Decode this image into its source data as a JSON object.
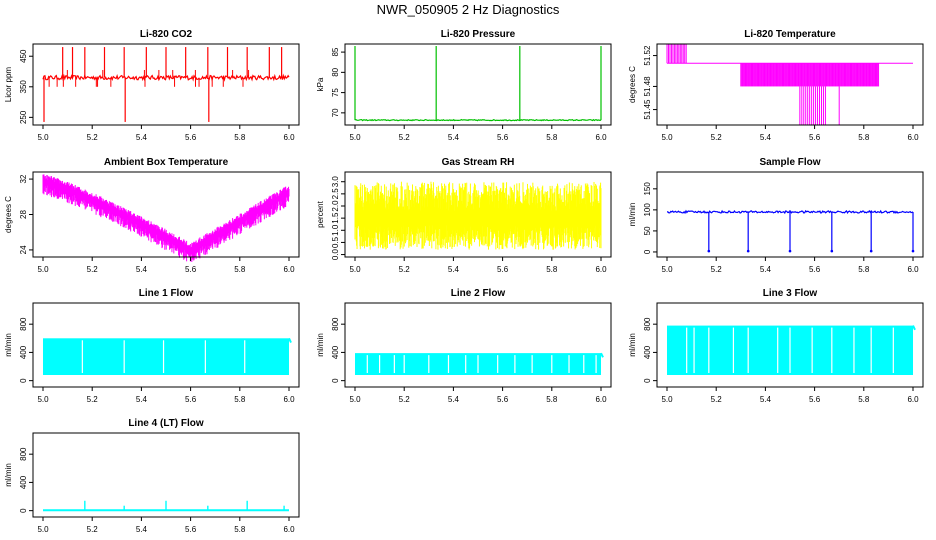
{
  "page_title": "NWR_050905  2 Hz Diagnostics",
  "chart_data": [
    {
      "type": "line",
      "title": "Li-820 CO2",
      "ylabel": "Licor ppm",
      "x_ticks": [
        "5.0",
        "5.2",
        "5.4",
        "5.6",
        "5.8",
        "6.0"
      ],
      "y_ticks": [
        "250",
        "350",
        "450"
      ],
      "xlim": [
        5.0,
        6.0
      ],
      "ylim": [
        225,
        490
      ],
      "color": "#ff0000",
      "series": [
        {
          "name": "CO2",
          "baseline": 380,
          "spikes_up": [
            5.08,
            5.12,
            5.17,
            5.25,
            5.33,
            5.42,
            5.5,
            5.58,
            5.67,
            5.75,
            5.83,
            5.92,
            5.97
          ],
          "spike_top": 480,
          "spikes_down": [
            5.0,
            5.33,
            5.67
          ],
          "spike_bottom": 235
        }
      ]
    },
    {
      "type": "line",
      "title": "Li-820 Pressure",
      "ylabel": "kPa",
      "x_ticks": [
        "5.0",
        "5.2",
        "5.4",
        "5.6",
        "5.8",
        "6.0"
      ],
      "y_ticks": [
        "70",
        "75",
        "80",
        "85"
      ],
      "xlim": [
        5.0,
        6.0
      ],
      "ylim": [
        67,
        87
      ],
      "color": "#00c000",
      "series": [
        {
          "name": "Pressure",
          "baseline": 68.2,
          "spikes_up": [
            5.0,
            5.33,
            5.67,
            6.0
          ],
          "spike_top": 86.5
        }
      ]
    },
    {
      "type": "line",
      "title": "Li-820 Temperature",
      "ylabel": "degrees C",
      "x_ticks": [
        "5.0",
        "5.2",
        "5.4",
        "5.6",
        "5.8",
        "6.0"
      ],
      "y_ticks": [
        "51.45",
        "51.48",
        "51.52"
      ],
      "xlim": [
        5.0,
        6.0
      ],
      "ylim": [
        51.43,
        51.535
      ],
      "color": "#ff00ff",
      "series": [
        {
          "name": "Temperature",
          "baseline": 51.51,
          "band_low": 51.48
        }
      ]
    },
    {
      "type": "line",
      "title": "Ambient Box Temperature",
      "ylabel": "degrees C",
      "x_ticks": [
        "5.0",
        "5.2",
        "5.4",
        "5.6",
        "5.8",
        "6.0"
      ],
      "y_ticks": [
        "24",
        "28",
        "32"
      ],
      "xlim": [
        5.0,
        6.0
      ],
      "ylim": [
        23.2,
        32.8
      ],
      "color": "#ff00ff",
      "series": [
        {
          "name": "Box temperature",
          "start": 31.8,
          "min_x": 5.6,
          "min": 24.0,
          "end": 30.6
        }
      ]
    },
    {
      "type": "line",
      "title": "Gas Stream RH",
      "ylabel": "percent",
      "x_ticks": [
        "5.0",
        "5.2",
        "5.4",
        "5.6",
        "5.8",
        "6.0"
      ],
      "y_ticks": [
        "0.0",
        "0.5",
        "1.0",
        "1.5",
        "2.0",
        "2.5",
        "3.0"
      ],
      "xlim": [
        5.0,
        6.0
      ],
      "ylim": [
        -0.1,
        3.4
      ],
      "color": "#ffff00",
      "series": [
        {
          "name": "RH",
          "mean": 1.5,
          "min": 0.2,
          "max": 3.0
        }
      ]
    },
    {
      "type": "line",
      "title": "Sample Flow",
      "ylabel": "ml/min",
      "x_ticks": [
        "5.0",
        "5.2",
        "5.4",
        "5.6",
        "5.8",
        "6.0"
      ],
      "y_ticks": [
        "0",
        "50",
        "100",
        "150"
      ],
      "xlim": [
        5.0,
        6.0
      ],
      "ylim": [
        -12,
        190
      ],
      "color": "#0000ff",
      "series": [
        {
          "name": "Sample flow",
          "baseline": 95,
          "drops": [
            5.17,
            5.33,
            5.5,
            5.67,
            5.83,
            6.0
          ],
          "drop_bottom": 2
        }
      ]
    },
    {
      "type": "area",
      "title": "Line 1 Flow",
      "ylabel": "ml/min",
      "x_ticks": [
        "5.0",
        "5.2",
        "5.4",
        "5.6",
        "5.8",
        "6.0"
      ],
      "y_ticks": [
        "0",
        "400",
        "800"
      ],
      "xlim": [
        5.0,
        6.0
      ],
      "ylim": [
        -90,
        1100
      ],
      "color": "#00ffff",
      "series": [
        {
          "name": "Line 1",
          "low": 80,
          "high": 600,
          "gaps": [
            5.16,
            5.33,
            5.49,
            5.66,
            5.82
          ]
        }
      ]
    },
    {
      "type": "area",
      "title": "Line 2 Flow",
      "ylabel": "ml/min",
      "x_ticks": [
        "5.0",
        "5.2",
        "5.4",
        "5.6",
        "5.8",
        "6.0"
      ],
      "y_ticks": [
        "0",
        "400",
        "800"
      ],
      "xlim": [
        5.0,
        6.0
      ],
      "ylim": [
        -90,
        1100
      ],
      "color": "#00ffff",
      "series": [
        {
          "name": "Line 2",
          "low": 80,
          "high": 390,
          "gaps": [
            5.05,
            5.1,
            5.16,
            5.2,
            5.3,
            5.38,
            5.45,
            5.5,
            5.58,
            5.65,
            5.72,
            5.8,
            5.87,
            5.93,
            5.98
          ]
        }
      ]
    },
    {
      "type": "area",
      "title": "Line 3 Flow",
      "ylabel": "ml/min",
      "x_ticks": [
        "5.0",
        "5.2",
        "5.4",
        "5.6",
        "5.8",
        "6.0"
      ],
      "y_ticks": [
        "0",
        "400",
        "800"
      ],
      "xlim": [
        5.0,
        6.0
      ],
      "ylim": [
        -90,
        1100
      ],
      "color": "#00ffff",
      "series": [
        {
          "name": "Line 3",
          "low": 80,
          "high": 780,
          "gaps": [
            5.08,
            5.11,
            5.17,
            5.27,
            5.33,
            5.45,
            5.5,
            5.59,
            5.67,
            5.76,
            5.83,
            5.92
          ]
        }
      ]
    },
    {
      "type": "line",
      "title": "Line 4 (LT) Flow",
      "ylabel": "ml/min",
      "x_ticks": [
        "5.0",
        "5.2",
        "5.4",
        "5.6",
        "5.8",
        "6.0"
      ],
      "y_ticks": [
        "0",
        "400",
        "800"
      ],
      "xlim": [
        5.0,
        6.0
      ],
      "ylim": [
        -90,
        1100
      ],
      "color": "#00ffff",
      "series": [
        {
          "name": "Line 4",
          "baseline": 5,
          "spikes_up": [
            5.17,
            5.33,
            5.5,
            5.67,
            5.83,
            5.98
          ],
          "spike_top": 140
        }
      ]
    }
  ]
}
